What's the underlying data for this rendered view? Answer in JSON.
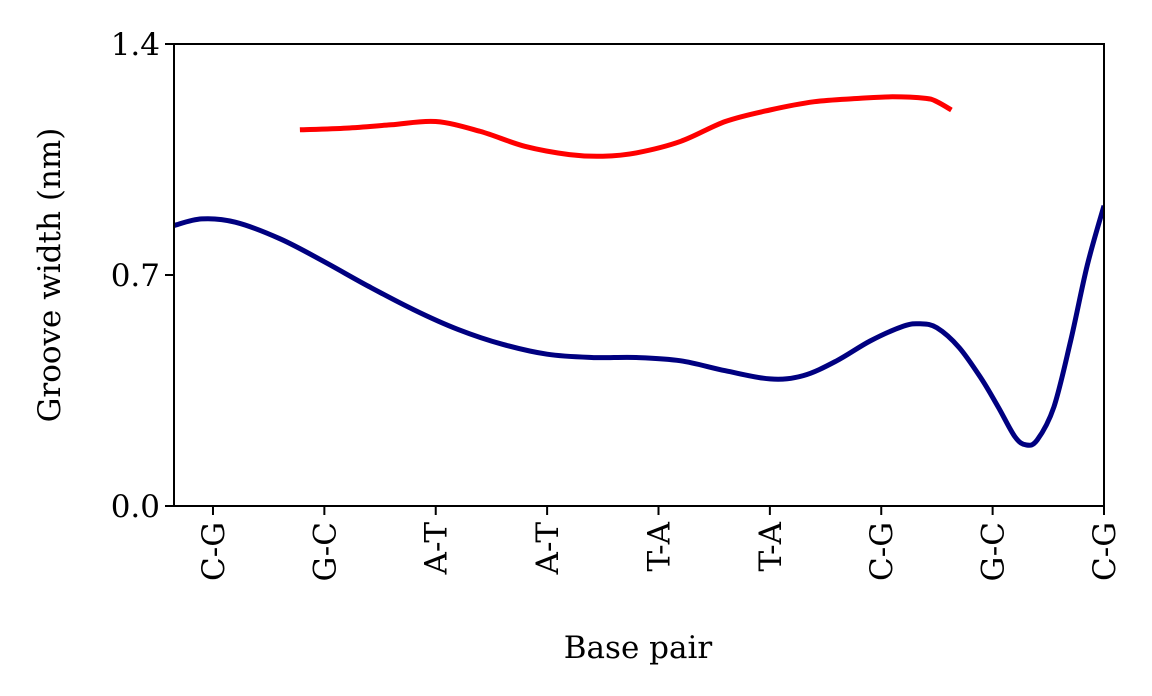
{
  "chart_data": {
    "type": "line",
    "title": "",
    "xlabel": "Base pair",
    "ylabel": "Groove width (nm)",
    "categories": [
      "C-G",
      "G-C",
      "A-T",
      "A-T",
      "T-A",
      "T-A",
      "C-G",
      "G-C",
      "C-G"
    ],
    "ylim": [
      0.0,
      1.4
    ],
    "xlim": [
      -0.35,
      8.0
    ],
    "yticks": [
      "0.0",
      "0.7",
      "1.4"
    ],
    "grid": false,
    "series": [
      {
        "color": "#ff0000",
        "points": [
          [
            0.78,
            1.14
          ],
          [
            1.2,
            1.145
          ],
          [
            1.6,
            1.155
          ],
          [
            2.0,
            1.165
          ],
          [
            2.4,
            1.135
          ],
          [
            2.8,
            1.09
          ],
          [
            3.2,
            1.065
          ],
          [
            3.5,
            1.06
          ],
          [
            3.8,
            1.07
          ],
          [
            4.2,
            1.105
          ],
          [
            4.6,
            1.165
          ],
          [
            5.0,
            1.2
          ],
          [
            5.4,
            1.225
          ],
          [
            5.8,
            1.235
          ],
          [
            6.1,
            1.24
          ],
          [
            6.4,
            1.235
          ],
          [
            6.5,
            1.225
          ],
          [
            6.63,
            1.2
          ]
        ]
      },
      {
        "color": "#000080",
        "points": [
          [
            -0.35,
            0.85
          ],
          [
            -0.1,
            0.87
          ],
          [
            0.2,
            0.86
          ],
          [
            0.6,
            0.81
          ],
          [
            1.0,
            0.74
          ],
          [
            1.4,
            0.665
          ],
          [
            1.8,
            0.595
          ],
          [
            2.2,
            0.535
          ],
          [
            2.6,
            0.49
          ],
          [
            3.0,
            0.46
          ],
          [
            3.4,
            0.45
          ],
          [
            3.8,
            0.45
          ],
          [
            4.2,
            0.44
          ],
          [
            4.6,
            0.41
          ],
          [
            5.0,
            0.385
          ],
          [
            5.3,
            0.395
          ],
          [
            5.6,
            0.44
          ],
          [
            5.9,
            0.5
          ],
          [
            6.2,
            0.545
          ],
          [
            6.35,
            0.552
          ],
          [
            6.5,
            0.54
          ],
          [
            6.7,
            0.48
          ],
          [
            6.9,
            0.385
          ],
          [
            7.05,
            0.3
          ],
          [
            7.2,
            0.21
          ],
          [
            7.3,
            0.185
          ],
          [
            7.4,
            0.2
          ],
          [
            7.55,
            0.3
          ],
          [
            7.7,
            0.5
          ],
          [
            7.85,
            0.73
          ],
          [
            8.0,
            0.91
          ]
        ]
      }
    ]
  }
}
